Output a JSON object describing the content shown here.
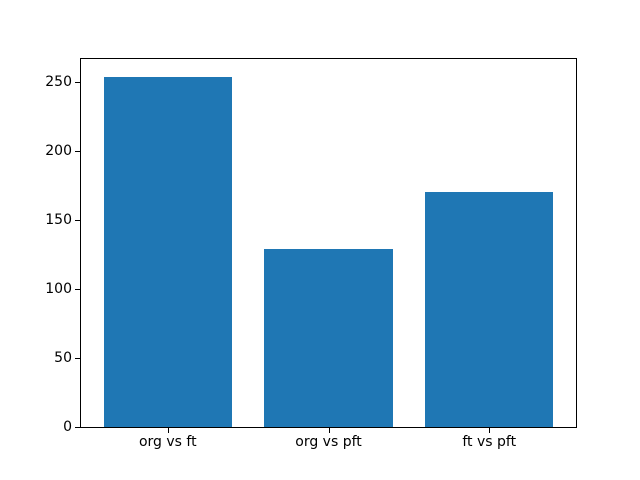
{
  "figure": {
    "background_color": "#ffffff",
    "spine_color": "#000000",
    "tick_text_color": "#000000"
  },
  "chart_data": {
    "type": "bar",
    "title": "",
    "xlabel": "",
    "ylabel": "",
    "categories": [
      "org vs ft",
      "org vs pft",
      "ft vs pft"
    ],
    "values": [
      254,
      129,
      170
    ],
    "bar_color": "#1f77b4",
    "bar_width": 0.8,
    "xlim": [
      -0.54,
      2.54
    ],
    "ylim": [
      0,
      266.7
    ],
    "yticks": [
      0,
      50,
      100,
      150,
      200,
      250
    ],
    "grid": false,
    "legend": null
  }
}
